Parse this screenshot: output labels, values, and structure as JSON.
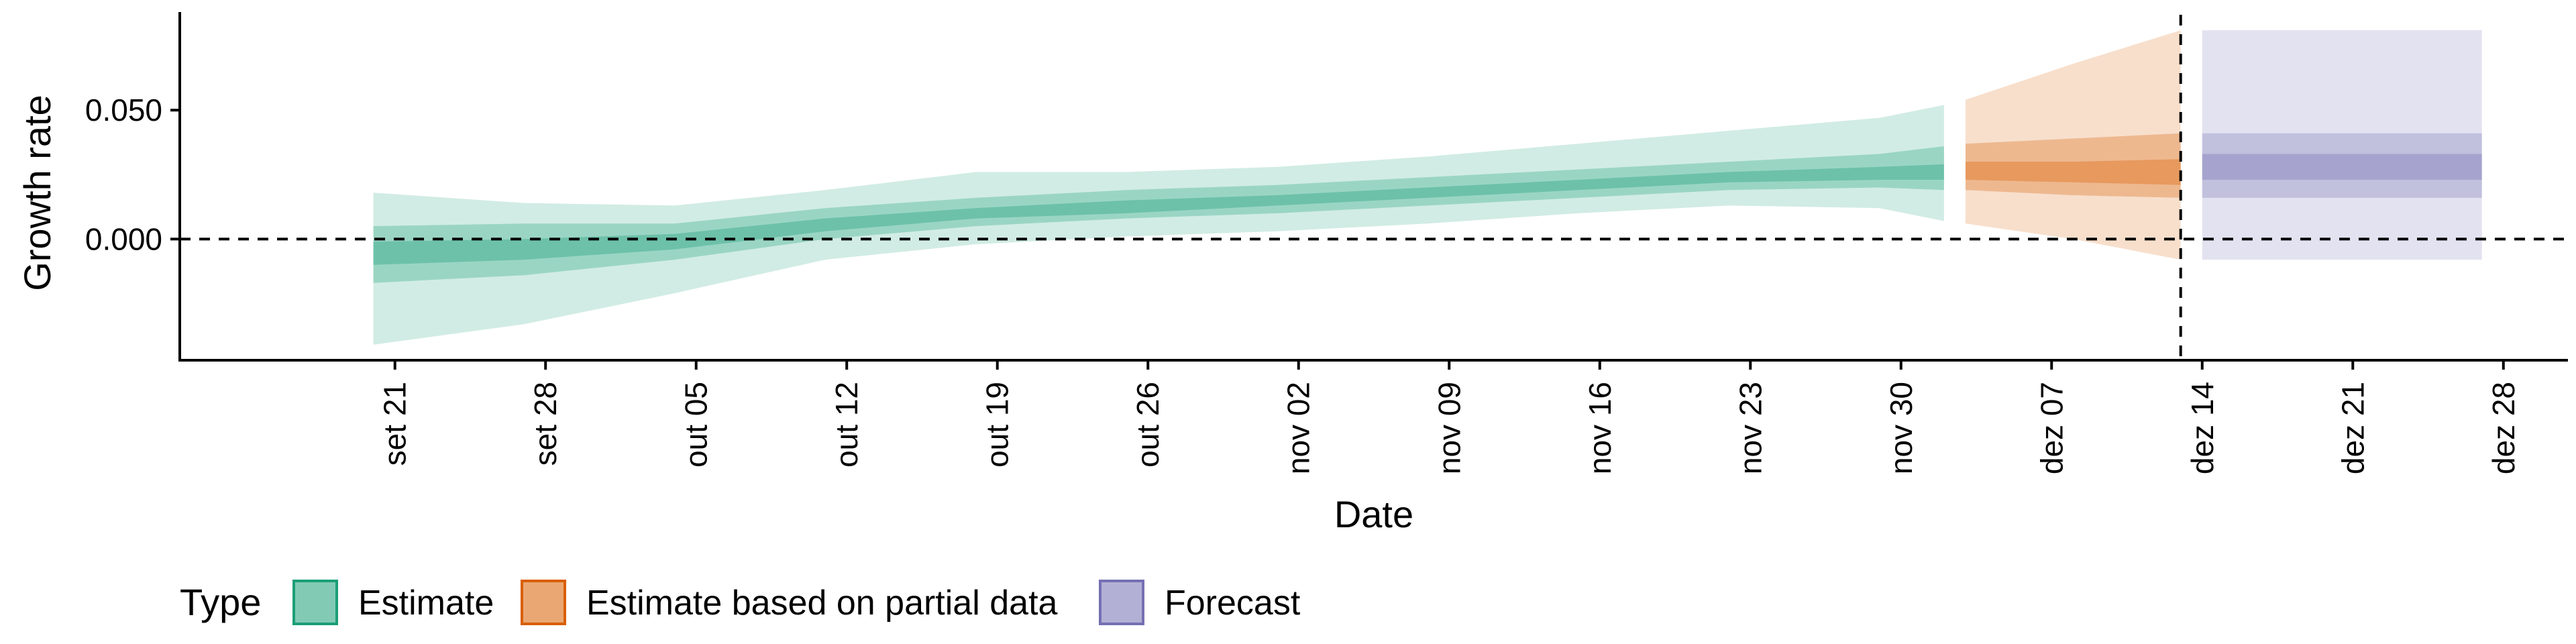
{
  "chart_data": {
    "type": "area",
    "title": "",
    "xlabel": "Date",
    "ylabel": "Growth rate",
    "ylim": [
      -0.047,
      0.087
    ],
    "xlim": [
      "2020-09-11",
      "2020-12-31"
    ],
    "y_ticks": [
      {
        "value": 0.0,
        "label": "0.000"
      },
      {
        "value": 0.05,
        "label": "0.050"
      }
    ],
    "x_ticks": [
      {
        "date": "2020-09-21",
        "label": "set 21"
      },
      {
        "date": "2020-09-28",
        "label": "set 28"
      },
      {
        "date": "2020-10-05",
        "label": "out 05"
      },
      {
        "date": "2020-10-12",
        "label": "out 12"
      },
      {
        "date": "2020-10-19",
        "label": "out 19"
      },
      {
        "date": "2020-10-26",
        "label": "out 26"
      },
      {
        "date": "2020-11-02",
        "label": "nov 02"
      },
      {
        "date": "2020-11-09",
        "label": "nov 09"
      },
      {
        "date": "2020-11-16",
        "label": "nov 16"
      },
      {
        "date": "2020-11-23",
        "label": "nov 23"
      },
      {
        "date": "2020-11-30",
        "label": "nov 30"
      },
      {
        "date": "2020-12-07",
        "label": "dez 07"
      },
      {
        "date": "2020-12-14",
        "label": "dez 14"
      },
      {
        "date": "2020-12-21",
        "label": "dez 21"
      },
      {
        "date": "2020-12-28",
        "label": "dez 28"
      }
    ],
    "reference_lines": {
      "horizontal_y": 0.0,
      "vertical_date": "2020-12-13"
    },
    "grid": false,
    "legend": {
      "title": "Type",
      "position": "bottom",
      "entries": [
        {
          "label": "Estimate",
          "color": "#1b9e77"
        },
        {
          "label": "Estimate based on partial data",
          "color": "#d95f02"
        },
        {
          "label": "Forecast",
          "color": "#7570b3"
        }
      ]
    },
    "series": [
      {
        "color": "#1b9e77",
        "points": [
          {
            "date": "2020-09-20",
            "lo90": -0.041,
            "lo50": -0.017,
            "lo20": -0.01,
            "hi20": -0.001,
            "hi50": 0.005,
            "hi90": 0.018
          },
          {
            "date": "2020-09-27",
            "lo90": -0.033,
            "lo50": -0.014,
            "lo20": -0.008,
            "hi20": 0.0,
            "hi50": 0.006,
            "hi90": 0.014
          },
          {
            "date": "2020-10-04",
            "lo90": -0.021,
            "lo50": -0.008,
            "lo20": -0.004,
            "hi20": 0.002,
            "hi50": 0.006,
            "hi90": 0.013
          },
          {
            "date": "2020-10-11",
            "lo90": -0.008,
            "lo50": 0.0,
            "lo20": 0.003,
            "hi20": 0.008,
            "hi50": 0.012,
            "hi90": 0.019
          },
          {
            "date": "2020-10-18",
            "lo90": -0.002,
            "lo50": 0.005,
            "lo20": 0.008,
            "hi20": 0.012,
            "hi50": 0.016,
            "hi90": 0.026
          },
          {
            "date": "2020-10-25",
            "lo90": 0.001,
            "lo50": 0.008,
            "lo20": 0.01,
            "hi20": 0.015,
            "hi50": 0.019,
            "hi90": 0.026
          },
          {
            "date": "2020-11-01",
            "lo90": 0.003,
            "lo50": 0.01,
            "lo20": 0.013,
            "hi20": 0.017,
            "hi50": 0.021,
            "hi90": 0.028
          },
          {
            "date": "2020-11-08",
            "lo90": 0.006,
            "lo50": 0.013,
            "lo20": 0.016,
            "hi20": 0.02,
            "hi50": 0.024,
            "hi90": 0.032
          },
          {
            "date": "2020-11-15",
            "lo90": 0.01,
            "lo50": 0.016,
            "lo20": 0.019,
            "hi20": 0.023,
            "hi50": 0.027,
            "hi90": 0.037
          },
          {
            "date": "2020-11-22",
            "lo90": 0.013,
            "lo50": 0.019,
            "lo20": 0.022,
            "hi20": 0.026,
            "hi50": 0.03,
            "hi90": 0.042
          },
          {
            "date": "2020-11-29",
            "lo90": 0.012,
            "lo50": 0.02,
            "lo20": 0.023,
            "hi20": 0.028,
            "hi50": 0.033,
            "hi90": 0.047
          },
          {
            "date": "2020-12-02",
            "lo90": 0.007,
            "lo50": 0.019,
            "lo20": 0.023,
            "hi20": 0.029,
            "hi50": 0.036,
            "hi90": 0.052
          }
        ]
      },
      {
        "color": "#d95f02",
        "points": [
          {
            "date": "2020-12-03",
            "lo90": 0.006,
            "lo50": 0.019,
            "lo20": 0.023,
            "hi20": 0.03,
            "hi50": 0.037,
            "hi90": 0.054
          },
          {
            "date": "2020-12-08",
            "lo90": 0.0,
            "lo50": 0.017,
            "lo20": 0.022,
            "hi20": 0.03,
            "hi50": 0.039,
            "hi90": 0.068
          },
          {
            "date": "2020-12-13",
            "lo90": -0.008,
            "lo50": 0.016,
            "lo20": 0.021,
            "hi20": 0.031,
            "hi50": 0.041,
            "hi90": 0.081
          }
        ]
      },
      {
        "color": "#7570b3",
        "points": [
          {
            "date": "2020-12-14",
            "lo90": -0.008,
            "lo50": 0.016,
            "lo20": 0.023,
            "hi20": 0.033,
            "hi50": 0.041,
            "hi90": 0.081
          },
          {
            "date": "2020-12-27",
            "lo90": -0.008,
            "lo50": 0.016,
            "lo20": 0.023,
            "hi20": 0.033,
            "hi50": 0.041,
            "hi90": 0.081
          }
        ]
      }
    ]
  }
}
